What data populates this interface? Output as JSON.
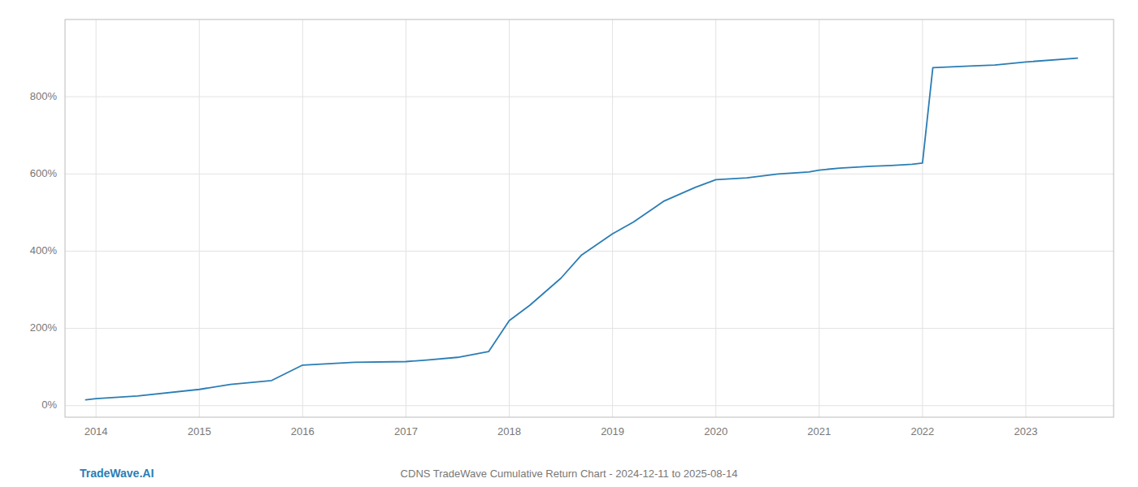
{
  "chart_data": {
    "type": "line",
    "title": "CDNS TradeWave Cumulative Return Chart - 2024-12-11 to 2025-08-14",
    "watermark": "TradeWave.AI",
    "color": "#2a7db5",
    "x": [
      2013.9,
      2014.0,
      2014.4,
      2015.0,
      2015.3,
      2015.7,
      2016.0,
      2016.5,
      2017.0,
      2017.2,
      2017.5,
      2017.8,
      2018.0,
      2018.2,
      2018.5,
      2018.7,
      2019.0,
      2019.2,
      2019.5,
      2019.8,
      2020.0,
      2020.3,
      2020.6,
      2020.9,
      2021.0,
      2021.2,
      2021.5,
      2021.7,
      2021.9,
      2022.0,
      2022.1,
      2022.5,
      2022.7,
      2023.0,
      2023.5
    ],
    "values": [
      15,
      18,
      25,
      42,
      55,
      65,
      105,
      112,
      114,
      118,
      125,
      140,
      220,
      260,
      330,
      390,
      445,
      475,
      530,
      565,
      585,
      590,
      600,
      605,
      610,
      615,
      620,
      622,
      625,
      628,
      875,
      880,
      882,
      890,
      900
    ],
    "xlim": [
      2013.7,
      2023.85
    ],
    "ylim": [
      -30,
      1000
    ],
    "xticks": [
      2014,
      2015,
      2016,
      2017,
      2018,
      2019,
      2020,
      2021,
      2022,
      2023
    ],
    "yticks": [
      {
        "value": 0,
        "label": "0%"
      },
      {
        "value": 200,
        "label": "200%"
      },
      {
        "value": 400,
        "label": "400%"
      },
      {
        "value": 600,
        "label": "600%"
      },
      {
        "value": 800,
        "label": "800%"
      }
    ],
    "grid": true
  }
}
